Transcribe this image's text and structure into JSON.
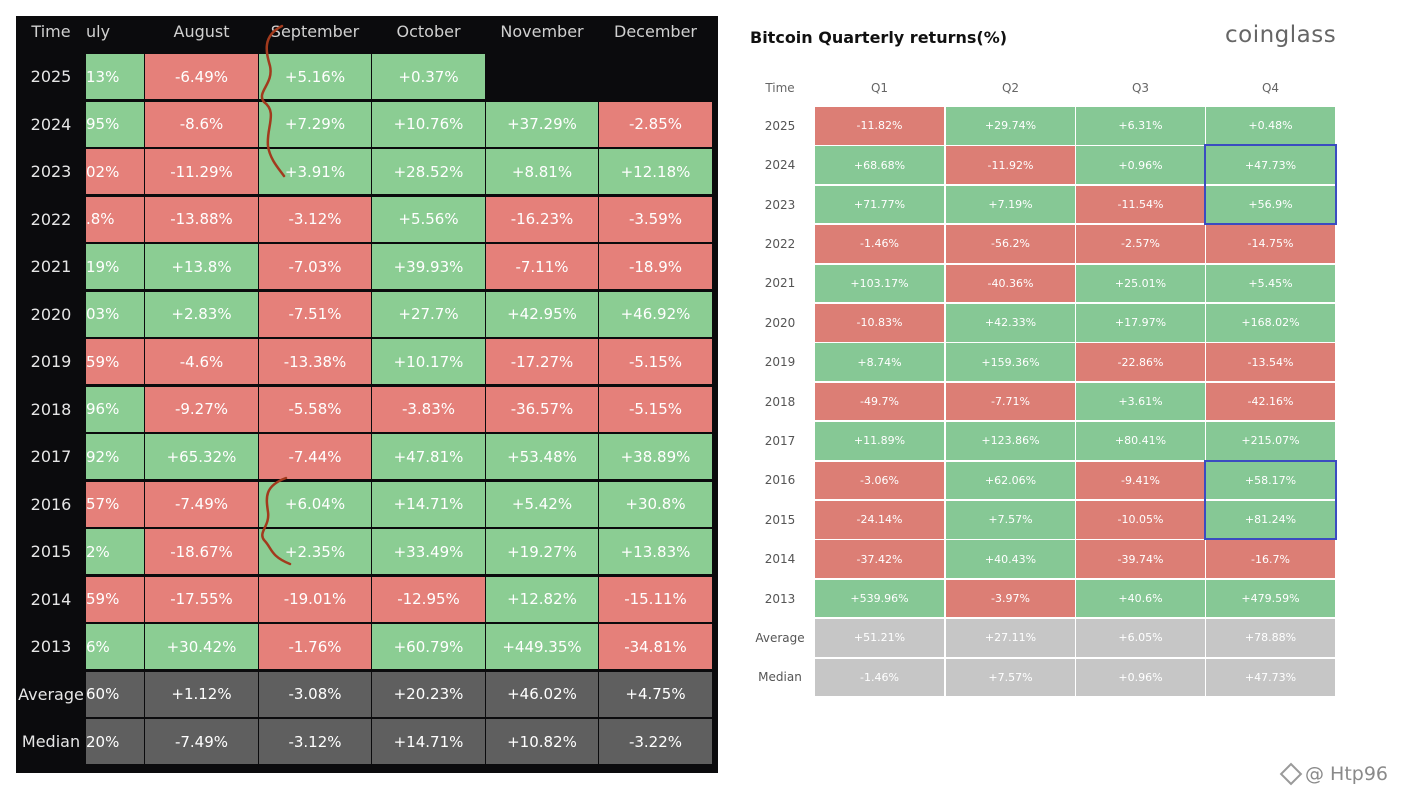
{
  "colors": {
    "left_green": "#8bcd93",
    "left_red": "#e5807a",
    "left_summary": "#5f5f5f",
    "right_green": "#86c895",
    "right_red": "#dc7e75",
    "right_summary": "#c6c6c6",
    "highlight": "#3b4cc0",
    "annotation": "#a23a1d"
  },
  "chart_data": [
    {
      "type": "table",
      "title": "",
      "columns": [
        "Time",
        "uly",
        "August",
        "September",
        "October",
        "November",
        "December"
      ],
      "rows": [
        {
          "label": "2025",
          "values": [
            "13%",
            "-6.49%",
            "+5.16%",
            "+0.37%",
            "",
            ""
          ],
          "colors": [
            "green",
            "red",
            "green",
            "green",
            "none",
            "none"
          ]
        },
        {
          "label": "2024",
          "values": [
            "95%",
            "-8.6%",
            "+7.29%",
            "+10.76%",
            "+37.29%",
            "-2.85%"
          ],
          "colors": [
            "green",
            "red",
            "green",
            "green",
            "green",
            "red"
          ]
        },
        {
          "label": "2023",
          "values": [
            "02%",
            "-11.29%",
            "+3.91%",
            "+28.52%",
            "+8.81%",
            "+12.18%"
          ],
          "colors": [
            "red",
            "red",
            "green",
            "green",
            "green",
            "green"
          ]
        },
        {
          "label": "2022",
          "values": [
            ".8%",
            "-13.88%",
            "-3.12%",
            "+5.56%",
            "-16.23%",
            "-3.59%"
          ],
          "colors": [
            "red",
            "red",
            "red",
            "green",
            "red",
            "red"
          ]
        },
        {
          "label": "2021",
          "values": [
            "19%",
            "+13.8%",
            "-7.03%",
            "+39.93%",
            "-7.11%",
            "-18.9%"
          ],
          "colors": [
            "green",
            "green",
            "red",
            "green",
            "red",
            "red"
          ]
        },
        {
          "label": "2020",
          "values": [
            "03%",
            "+2.83%",
            "-7.51%",
            "+27.7%",
            "+42.95%",
            "+46.92%"
          ],
          "colors": [
            "green",
            "green",
            "red",
            "green",
            "green",
            "green"
          ]
        },
        {
          "label": "2019",
          "values": [
            "59%",
            "-4.6%",
            "-13.38%",
            "+10.17%",
            "-17.27%",
            "-5.15%"
          ],
          "colors": [
            "red",
            "red",
            "red",
            "green",
            "red",
            "red"
          ]
        },
        {
          "label": "2018",
          "values": [
            "96%",
            "-9.27%",
            "-5.58%",
            "-3.83%",
            "-36.57%",
            "-5.15%"
          ],
          "colors": [
            "green",
            "red",
            "red",
            "red",
            "red",
            "red"
          ]
        },
        {
          "label": "2017",
          "values": [
            "92%",
            "+65.32%",
            "-7.44%",
            "+47.81%",
            "+53.48%",
            "+38.89%"
          ],
          "colors": [
            "green",
            "green",
            "red",
            "green",
            "green",
            "green"
          ]
        },
        {
          "label": "2016",
          "values": [
            "57%",
            "-7.49%",
            "+6.04%",
            "+14.71%",
            "+5.42%",
            "+30.8%"
          ],
          "colors": [
            "red",
            "red",
            "green",
            "green",
            "green",
            "green"
          ]
        },
        {
          "label": "2015",
          "values": [
            "2%",
            "-18.67%",
            "+2.35%",
            "+33.49%",
            "+19.27%",
            "+13.83%"
          ],
          "colors": [
            "green",
            "red",
            "green",
            "green",
            "green",
            "green"
          ]
        },
        {
          "label": "2014",
          "values": [
            "59%",
            "-17.55%",
            "-19.01%",
            "-12.95%",
            "+12.82%",
            "-15.11%"
          ],
          "colors": [
            "red",
            "red",
            "red",
            "red",
            "green",
            "red"
          ]
        },
        {
          "label": "2013",
          "values": [
            "6%",
            "+30.42%",
            "-1.76%",
            "+60.79%",
            "+449.35%",
            "-34.81%"
          ],
          "colors": [
            "green",
            "green",
            "red",
            "green",
            "green",
            "red"
          ]
        },
        {
          "label": "Average",
          "values": [
            "60%",
            "+1.12%",
            "-3.08%",
            "+20.23%",
            "+46.02%",
            "+4.75%"
          ],
          "colors": [
            "summary",
            "summary",
            "summary",
            "summary",
            "summary",
            "summary"
          ]
        },
        {
          "label": "Median",
          "values": [
            "20%",
            "-7.49%",
            "-3.12%",
            "+14.71%",
            "+10.82%",
            "-3.22%"
          ],
          "colors": [
            "summary",
            "summary",
            "summary",
            "summary",
            "summary",
            "summary"
          ]
        }
      ]
    },
    {
      "type": "table",
      "title": "Bitcoin Quarterly returns(%)",
      "brand": "coinglass",
      "columns": [
        "Time",
        "Q1",
        "Q2",
        "Q3",
        "Q4"
      ],
      "rows": [
        {
          "label": "2025",
          "values": [
            "-11.82%",
            "+29.74%",
            "+6.31%",
            "+0.48%"
          ],
          "colors": [
            "red",
            "green",
            "green",
            "green"
          ]
        },
        {
          "label": "2024",
          "values": [
            "+68.68%",
            "-11.92%",
            "+0.96%",
            "+47.73%"
          ],
          "colors": [
            "green",
            "red",
            "green",
            "green"
          ]
        },
        {
          "label": "2023",
          "values": [
            "+71.77%",
            "+7.19%",
            "-11.54%",
            "+56.9%"
          ],
          "colors": [
            "green",
            "green",
            "red",
            "green"
          ]
        },
        {
          "label": "2022",
          "values": [
            "-1.46%",
            "-56.2%",
            "-2.57%",
            "-14.75%"
          ],
          "colors": [
            "red",
            "red",
            "red",
            "red"
          ]
        },
        {
          "label": "2021",
          "values": [
            "+103.17%",
            "-40.36%",
            "+25.01%",
            "+5.45%"
          ],
          "colors": [
            "green",
            "red",
            "green",
            "green"
          ]
        },
        {
          "label": "2020",
          "values": [
            "-10.83%",
            "+42.33%",
            "+17.97%",
            "+168.02%"
          ],
          "colors": [
            "red",
            "green",
            "green",
            "green"
          ]
        },
        {
          "label": "2019",
          "values": [
            "+8.74%",
            "+159.36%",
            "-22.86%",
            "-13.54%"
          ],
          "colors": [
            "green",
            "green",
            "red",
            "red"
          ]
        },
        {
          "label": "2018",
          "values": [
            "-49.7%",
            "-7.71%",
            "+3.61%",
            "-42.16%"
          ],
          "colors": [
            "red",
            "red",
            "green",
            "red"
          ]
        },
        {
          "label": "2017",
          "values": [
            "+11.89%",
            "+123.86%",
            "+80.41%",
            "+215.07%"
          ],
          "colors": [
            "green",
            "green",
            "green",
            "green"
          ]
        },
        {
          "label": "2016",
          "values": [
            "-3.06%",
            "+62.06%",
            "-9.41%",
            "+58.17%"
          ],
          "colors": [
            "red",
            "green",
            "red",
            "green"
          ]
        },
        {
          "label": "2015",
          "values": [
            "-24.14%",
            "+7.57%",
            "-10.05%",
            "+81.24%"
          ],
          "colors": [
            "red",
            "green",
            "red",
            "green"
          ]
        },
        {
          "label": "2014",
          "values": [
            "-37.42%",
            "+40.43%",
            "-39.74%",
            "-16.7%"
          ],
          "colors": [
            "red",
            "green",
            "red",
            "red"
          ]
        },
        {
          "label": "2013",
          "values": [
            "+539.96%",
            "-3.97%",
            "+40.6%",
            "+479.59%"
          ],
          "colors": [
            "green",
            "red",
            "green",
            "green"
          ]
        },
        {
          "label": "Average",
          "values": [
            "+51.21%",
            "+27.11%",
            "+6.05%",
            "+78.88%"
          ],
          "colors": [
            "summary",
            "summary",
            "summary",
            "summary"
          ]
        },
        {
          "label": "Median",
          "values": [
            "-1.46%",
            "+7.57%",
            "+0.96%",
            "+47.73%"
          ],
          "colors": [
            "summary",
            "summary",
            "summary",
            "summary"
          ]
        }
      ],
      "highlights": [
        {
          "column": "Q4",
          "rows": [
            "2024",
            "2023"
          ]
        },
        {
          "column": "Q4",
          "rows": [
            "2016",
            "2015"
          ]
        }
      ]
    }
  ],
  "watermark": {
    "icon": "binance-diamond-icon",
    "text": "@ Htp96"
  }
}
